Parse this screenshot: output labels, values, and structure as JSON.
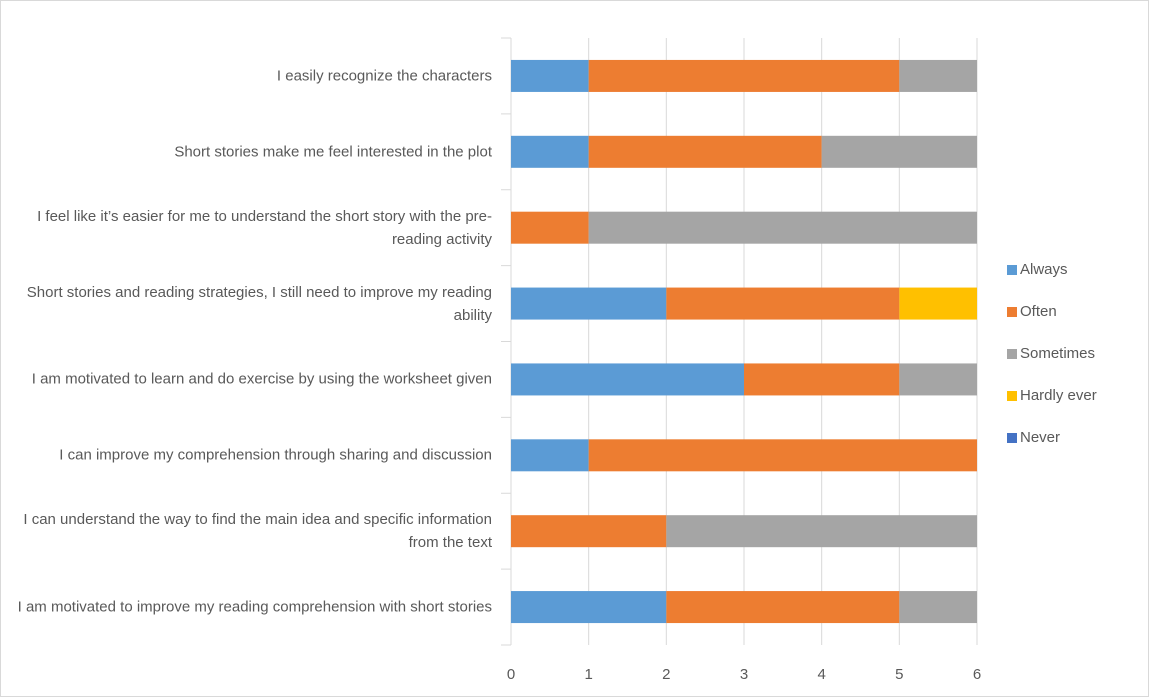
{
  "chart_data": {
    "type": "stacked-bar-horizontal",
    "categories": [
      "I easily recognize the characters",
      "Short stories make me feel interested in the plot",
      "I feel like it’s easier for me to understand the short story with the pre-reading activity",
      "Short stories and reading strategies, I still need to improve my reading ability",
      "I am motivated to learn and do exercise by using the worksheet given",
      "I can improve my comprehension through sharing and discussion",
      "I can understand the way to find the main idea and specific information from the text",
      "I am motivated to improve my reading comprehension with short stories"
    ],
    "series": [
      {
        "name": "Always",
        "color": "#5b9bd5",
        "values": [
          1,
          1,
          0,
          2,
          3,
          1,
          0,
          2
        ]
      },
      {
        "name": "Often",
        "color": "#ed7d31",
        "values": [
          4,
          3,
          1,
          3,
          2,
          5,
          2,
          3
        ]
      },
      {
        "name": "Sometimes",
        "color": "#a5a5a5",
        "values": [
          1,
          2,
          5,
          0,
          1,
          0,
          4,
          1
        ]
      },
      {
        "name": "Hardly ever",
        "color": "#ffc000",
        "values": [
          0,
          0,
          0,
          1,
          0,
          0,
          0,
          0
        ]
      },
      {
        "name": "Never",
        "color": "#4472c4",
        "values": [
          0,
          0,
          0,
          0,
          0,
          0,
          0,
          0
        ]
      }
    ],
    "xlim": [
      0,
      6
    ],
    "xticks": [
      0,
      1,
      2,
      3,
      4,
      5,
      6
    ],
    "grid": true,
    "legend": "right"
  }
}
